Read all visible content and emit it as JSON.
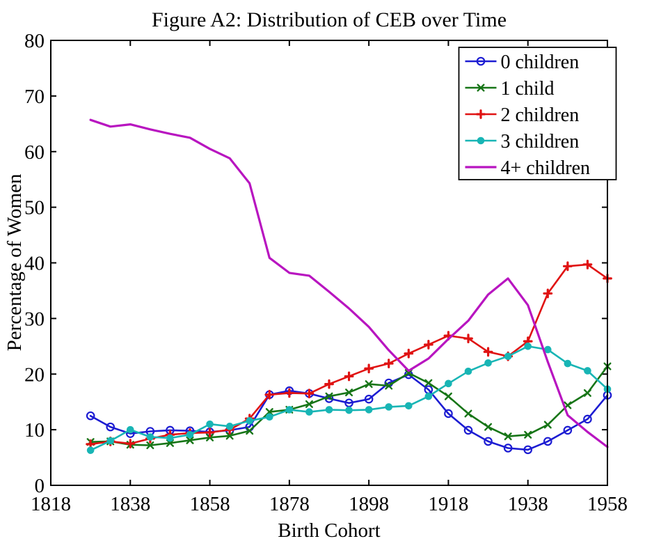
{
  "figure": {
    "title": "Figure A2: Distribution of CEB over Time",
    "xlabel": "Birth Cohort",
    "ylabel": "Percentage of Women"
  },
  "chart_data": {
    "type": "line",
    "title": "Figure A2: Distribution of CEB over Time",
    "xlabel": "Birth Cohort",
    "ylabel": "Percentage of Women",
    "xlim": [
      1818,
      1958
    ],
    "ylim": [
      0,
      80
    ],
    "xticks": [
      1818,
      1838,
      1858,
      1878,
      1898,
      1918,
      1938,
      1958
    ],
    "yticks": [
      0,
      10,
      20,
      30,
      40,
      50,
      60,
      70,
      80
    ],
    "grid": false,
    "legend_position": "top-right",
    "x": [
      1828,
      1833,
      1838,
      1843,
      1848,
      1853,
      1858,
      1863,
      1868,
      1873,
      1878,
      1883,
      1888,
      1893,
      1898,
      1903,
      1908,
      1913,
      1918,
      1923,
      1928,
      1933,
      1938,
      1943,
      1948,
      1953,
      1958
    ],
    "series": [
      {
        "name": "0 children",
        "color": "#1c1cd2",
        "marker": "circle-open",
        "values": [
          12.5,
          10.5,
          9.3,
          9.7,
          9.9,
          9.8,
          9.6,
          9.9,
          10.5,
          16.3,
          17.0,
          16.5,
          15.6,
          14.8,
          15.5,
          18.4,
          19.9,
          17.2,
          12.9,
          9.9,
          7.9,
          6.7,
          6.4,
          7.9,
          9.9,
          11.9,
          16.2
        ]
      },
      {
        "name": "1 child",
        "color": "#177517",
        "marker": "x",
        "values": [
          7.8,
          7.9,
          7.3,
          7.2,
          7.6,
          8.1,
          8.6,
          8.9,
          9.8,
          13.2,
          13.6,
          14.6,
          16.0,
          16.7,
          18.2,
          17.9,
          20.2,
          18.4,
          16.0,
          12.9,
          10.5,
          8.8,
          9.1,
          10.9,
          14.4,
          16.6,
          21.4
        ]
      },
      {
        "name": "2 children",
        "color": "#e01212",
        "marker": "plus",
        "values": [
          7.4,
          7.9,
          7.5,
          8.4,
          9.1,
          9.4,
          9.5,
          10.0,
          12.0,
          16.3,
          16.6,
          16.5,
          18.2,
          19.6,
          21.0,
          21.9,
          23.7,
          25.3,
          26.9,
          26.4,
          24.0,
          23.2,
          25.9,
          34.5,
          39.4,
          39.7,
          37.2
        ]
      },
      {
        "name": "3 children",
        "color": "#18b5b5",
        "marker": "dot",
        "values": [
          6.3,
          8.0,
          10.0,
          8.7,
          8.5,
          9.1,
          11.0,
          10.6,
          11.6,
          12.3,
          13.6,
          13.2,
          13.6,
          13.5,
          13.6,
          14.1,
          14.3,
          16.0,
          18.3,
          20.5,
          22.0,
          23.2,
          25.0,
          24.4,
          21.9,
          20.6,
          17.3
        ]
      },
      {
        "name": "4+ children",
        "color": "#b815c0",
        "marker": "none",
        "values": [
          65.7,
          64.5,
          64.9,
          64.0,
          63.2,
          62.5,
          60.5,
          58.8,
          54.3,
          40.9,
          38.2,
          37.7,
          34.8,
          31.8,
          28.5,
          24.3,
          20.6,
          22.8,
          26.3,
          29.6,
          34.3,
          37.2,
          32.4,
          22.2,
          12.6,
          9.6,
          6.9
        ]
      }
    ]
  }
}
